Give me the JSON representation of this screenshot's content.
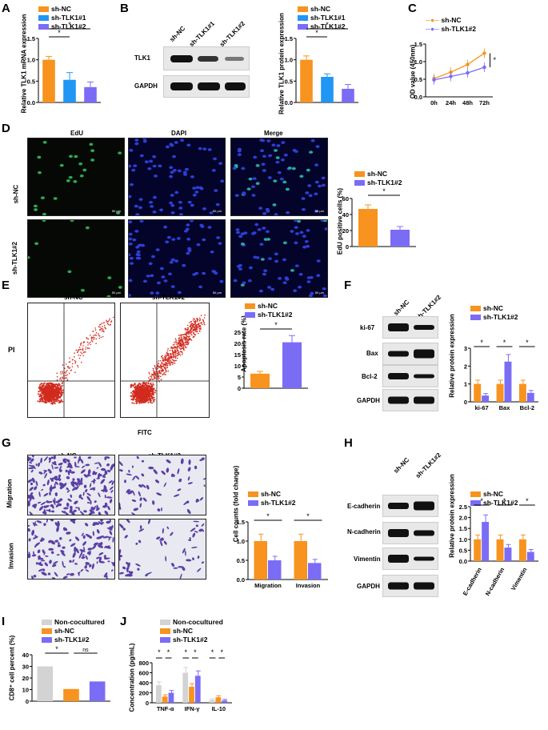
{
  "colors": {
    "nc": "#f7931e",
    "tlk1": "#2196f3",
    "tlk2": "#7b6cf6",
    "non": "#d3d3d3"
  },
  "panels": {
    "A": "A",
    "B": "B",
    "C": "C",
    "D": "D",
    "E": "E",
    "F": "F",
    "G": "G",
    "H": "H",
    "I": "I",
    "J": "J"
  },
  "groups": {
    "nc": "sh-NC",
    "tlk1": "sh-TLK1#1",
    "tlk2": "sh-TLK1#2",
    "non": "Non-cocultured"
  },
  "sig": {
    "star": "*",
    "ns": "ns"
  },
  "A": {
    "ylabel": "Relative TLK1 mRNA expression"
  },
  "B": {
    "blot_labels": [
      "TLK1",
      "GAPDH"
    ],
    "ylabel": "Relative TLK1 protein expression"
  },
  "C": {
    "ylabel": "OD value (450nm)"
  },
  "D": {
    "col_titles": [
      "EdU",
      "DAPI",
      "Merge"
    ],
    "row_labels": [
      "sh-NC",
      "sh-TLK1#2"
    ],
    "ylabel": "EdU positive cells (%)",
    "scale": "50 μm"
  },
  "E": {
    "xlabel": "FITC",
    "ylabel_flow": "PI",
    "ylabel": "Apoptosis rate (%)"
  },
  "F": {
    "blot_labels": [
      "ki-67",
      "Bax",
      "Bcl-2",
      "GAPDH"
    ],
    "ylabel": "Relative protein expression"
  },
  "G": {
    "row_labels": [
      "Migration",
      "Invasion"
    ],
    "ylabel": "Cell counts (fold change)"
  },
  "H": {
    "blot_labels": [
      "E-cadherin",
      "N-cadherin",
      "Vimentin",
      "GAPDH"
    ],
    "ylabel": "Relative protein expression"
  },
  "I": {
    "ylabel": "CD8⁺ cell percent (%)"
  },
  "J": {
    "ylabel": "Concentration (pg/mL)"
  },
  "chart_data": [
    {
      "id": "A",
      "type": "bar",
      "categories": [
        "sh-NC",
        "sh-TLK1#1",
        "sh-TLK1#2"
      ],
      "values": [
        1.0,
        0.53,
        0.36
      ],
      "errors": [
        0.08,
        0.17,
        0.12
      ],
      "ylim": [
        0,
        1.5
      ],
      "yticks": [
        "0.0",
        "0.5",
        "1.0",
        "1.5"
      ]
    },
    {
      "id": "B",
      "type": "bar",
      "categories": [
        "sh-NC",
        "sh-TLK1#1",
        "sh-TLK1#2"
      ],
      "values": [
        1.0,
        0.6,
        0.32
      ],
      "errors": [
        0.09,
        0.07,
        0.1
      ],
      "ylim": [
        0,
        1.5
      ],
      "yticks": [
        "0.0",
        "0.5",
        "1.0",
        "1.5"
      ]
    },
    {
      "id": "C",
      "type": "line",
      "x": [
        "0h",
        "24h",
        "48h",
        "72h"
      ],
      "series": [
        {
          "name": "sh-NC",
          "values": [
            0.52,
            0.7,
            0.92,
            1.24
          ]
        },
        {
          "name": "sh-TLK1#2",
          "values": [
            0.48,
            0.58,
            0.68,
            0.84
          ]
        }
      ],
      "ylim": [
        0,
        1.5
      ],
      "yticks": [
        "0.0",
        "0.5",
        "1.0",
        "1.5"
      ]
    },
    {
      "id": "D",
      "type": "bar",
      "categories": [
        "sh-NC",
        "sh-TLK1#2"
      ],
      "values": [
        47,
        21
      ],
      "errors": [
        5,
        4
      ],
      "ylim": [
        0,
        60
      ],
      "yticks": [
        "0",
        "20",
        "40",
        "60"
      ]
    },
    {
      "id": "E",
      "type": "bar",
      "categories": [
        "sh-NC",
        "sh-TLK1#2"
      ],
      "values": [
        6.5,
        20.5
      ],
      "errors": [
        1,
        3
      ],
      "ylim": [
        0,
        25
      ],
      "yticks": [
        "0",
        "5",
        "10",
        "15",
        "20",
        "25"
      ]
    },
    {
      "id": "F",
      "type": "bar",
      "categories": [
        "ki-67",
        "Bax",
        "Bcl-2"
      ],
      "series": [
        {
          "name": "sh-NC",
          "values": [
            1.0,
            1.0,
            1.0
          ]
        },
        {
          "name": "sh-TLK1#2",
          "values": [
            0.35,
            2.25,
            0.5
          ]
        }
      ],
      "ylim": [
        0,
        3
      ],
      "yticks": [
        "0",
        "1",
        "2",
        "3"
      ]
    },
    {
      "id": "G",
      "type": "bar",
      "categories": [
        "Migration",
        "Invasion"
      ],
      "series": [
        {
          "name": "sh-NC",
          "values": [
            1.0,
            1.0
          ]
        },
        {
          "name": "sh-TLK1#2",
          "values": [
            0.5,
            0.43
          ]
        }
      ],
      "ylim": [
        0,
        1.5
      ],
      "yticks": [
        "0.0",
        "0.5",
        "1.0",
        "1.5"
      ]
    },
    {
      "id": "H",
      "type": "bar",
      "categories": [
        "E-cadherin",
        "N-cadherin",
        "Vimentin"
      ],
      "series": [
        {
          "name": "sh-NC",
          "values": [
            1.0,
            1.0,
            1.0
          ]
        },
        {
          "name": "sh-TLK1#2",
          "values": [
            1.8,
            0.62,
            0.42
          ]
        }
      ],
      "ylim": [
        0,
        2.5
      ],
      "yticks": [
        "0.0",
        "0.5",
        "1.0",
        "1.5",
        "2.0",
        "2.5"
      ]
    },
    {
      "id": "I",
      "type": "bar",
      "categories": [
        "Non-cocultured",
        "sh-NC",
        "sh-TLK1#2"
      ],
      "values": [
        30,
        10.5,
        17
      ],
      "ylim": [
        0,
        40
      ],
      "yticks": [
        "0",
        "10",
        "20",
        "30",
        "40"
      ]
    },
    {
      "id": "J",
      "type": "bar",
      "categories": [
        "TNF-α",
        "IFN-γ",
        "IL-10"
      ],
      "series": [
        {
          "name": "Non-cocultured",
          "values": [
            350,
            600,
            55
          ]
        },
        {
          "name": "sh-NC",
          "values": [
            125,
            320,
            110
          ]
        },
        {
          "name": "sh-TLK1#2",
          "values": [
            200,
            540,
            45
          ]
        }
      ],
      "ylim": [
        0,
        800
      ],
      "yticks": [
        "0",
        "200",
        "400",
        "600",
        "800"
      ]
    }
  ]
}
